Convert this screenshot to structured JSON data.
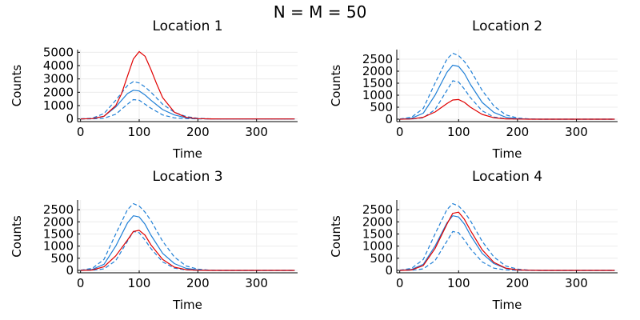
{
  "figure": {
    "suptitle": "N = M = 50"
  },
  "colors": {
    "estimate": "#1f7fd6",
    "truth": "#e00000",
    "grid": "#ececec",
    "axis": "#000000"
  },
  "chart_data": [
    {
      "type": "line",
      "title": "Location 1",
      "xlabel": "Time",
      "ylabel": "Counts",
      "xlim": [
        -5,
        370
      ],
      "ylim": [
        -200,
        5200
      ],
      "xticks": [
        0,
        100,
        200,
        300
      ],
      "yticks": [
        0,
        1000,
        2000,
        3000,
        4000,
        5000
      ],
      "grid": true,
      "series": [
        {
          "style": "solid",
          "color": "#1f7fd6",
          "x": [
            0,
            20,
            40,
            60,
            80,
            90,
            100,
            110,
            120,
            140,
            160,
            180,
            200,
            220,
            240,
            280,
            320,
            365
          ],
          "values": [
            5,
            30,
            200,
            900,
            1900,
            2150,
            2100,
            1800,
            1400,
            700,
            300,
            90,
            25,
            5,
            0,
            0,
            0,
            0
          ]
        },
        {
          "style": "dashed",
          "color": "#1f7fd6",
          "x": [
            0,
            20,
            40,
            60,
            80,
            90,
            100,
            110,
            120,
            140,
            160,
            180,
            200,
            220,
            240,
            280,
            320,
            365
          ],
          "values": [
            10,
            60,
            400,
            1400,
            2500,
            2800,
            2700,
            2400,
            2000,
            1100,
            500,
            180,
            50,
            10,
            0,
            0,
            0,
            0
          ]
        },
        {
          "style": "dashed",
          "color": "#1f7fd6",
          "x": [
            0,
            20,
            40,
            60,
            80,
            90,
            100,
            110,
            120,
            140,
            160,
            180,
            200,
            220,
            240,
            280,
            320,
            365
          ],
          "values": [
            0,
            5,
            50,
            350,
            1100,
            1450,
            1400,
            1100,
            800,
            300,
            80,
            20,
            5,
            0,
            0,
            0,
            0,
            0
          ]
        },
        {
          "style": "solid",
          "color": "#e00000",
          "x": [
            0,
            20,
            40,
            60,
            70,
            80,
            90,
            100,
            110,
            120,
            130,
            140,
            160,
            180,
            200,
            220,
            240,
            280,
            320,
            365
          ],
          "values": [
            0,
            20,
            200,
            1000,
            1900,
            3200,
            4500,
            5050,
            4700,
            3700,
            2600,
            1600,
            500,
            120,
            25,
            5,
            0,
            0,
            0,
            0
          ]
        }
      ]
    },
    {
      "type": "line",
      "title": "Location 2",
      "xlabel": "Time",
      "ylabel": "Counts",
      "xlim": [
        -5,
        370
      ],
      "ylim": [
        -100,
        2900
      ],
      "xticks": [
        0,
        100,
        200,
        300
      ],
      "yticks": [
        0,
        500,
        1000,
        1500,
        2000,
        2500
      ],
      "grid": true,
      "series": [
        {
          "style": "solid",
          "color": "#1f7fd6",
          "x": [
            0,
            20,
            40,
            60,
            80,
            90,
            100,
            110,
            120,
            140,
            160,
            180,
            200,
            220,
            240,
            280,
            320,
            365
          ],
          "values": [
            5,
            40,
            250,
            1000,
            1950,
            2250,
            2200,
            1900,
            1450,
            700,
            280,
            80,
            20,
            5,
            0,
            0,
            0,
            0
          ]
        },
        {
          "style": "dashed",
          "color": "#1f7fd6",
          "x": [
            0,
            20,
            40,
            60,
            80,
            90,
            100,
            110,
            120,
            140,
            160,
            180,
            200,
            220,
            240,
            280,
            320,
            365
          ],
          "values": [
            10,
            80,
            450,
            1500,
            2500,
            2750,
            2650,
            2400,
            2050,
            1200,
            550,
            180,
            50,
            10,
            0,
            0,
            0,
            0
          ]
        },
        {
          "style": "dashed",
          "color": "#1f7fd6",
          "x": [
            0,
            20,
            40,
            60,
            80,
            90,
            100,
            110,
            120,
            140,
            160,
            180,
            200,
            220,
            240,
            280,
            320,
            365
          ],
          "values": [
            0,
            5,
            60,
            400,
            1200,
            1600,
            1550,
            1250,
            900,
            350,
            90,
            20,
            5,
            0,
            0,
            0,
            0,
            0
          ]
        },
        {
          "style": "solid",
          "color": "#e00000",
          "x": [
            0,
            20,
            40,
            60,
            80,
            90,
            100,
            110,
            120,
            140,
            160,
            180,
            200,
            220,
            240,
            280,
            320,
            365
          ],
          "values": [
            0,
            10,
            80,
            300,
            650,
            800,
            820,
            700,
            500,
            200,
            60,
            15,
            5,
            0,
            0,
            0,
            0,
            0
          ]
        }
      ]
    },
    {
      "type": "line",
      "title": "Location 3",
      "xlabel": "Time",
      "ylabel": "Counts",
      "xlim": [
        -5,
        370
      ],
      "ylim": [
        -100,
        2900
      ],
      "xticks": [
        0,
        100,
        200,
        300
      ],
      "yticks": [
        0,
        500,
        1000,
        1500,
        2000,
        2500
      ],
      "grid": true,
      "series": [
        {
          "style": "solid",
          "color": "#1f7fd6",
          "x": [
            0,
            20,
            40,
            60,
            80,
            90,
            100,
            110,
            120,
            140,
            160,
            180,
            200,
            220,
            240,
            280,
            320,
            365
          ],
          "values": [
            5,
            40,
            250,
            1000,
            1950,
            2250,
            2200,
            1900,
            1450,
            700,
            280,
            80,
            20,
            5,
            0,
            0,
            0,
            0
          ]
        },
        {
          "style": "dashed",
          "color": "#1f7fd6",
          "x": [
            0,
            20,
            40,
            60,
            80,
            90,
            100,
            110,
            120,
            140,
            160,
            180,
            200,
            220,
            240,
            280,
            320,
            365
          ],
          "values": [
            10,
            80,
            450,
            1500,
            2500,
            2750,
            2650,
            2400,
            2050,
            1200,
            550,
            180,
            50,
            10,
            0,
            0,
            0,
            0
          ]
        },
        {
          "style": "dashed",
          "color": "#1f7fd6",
          "x": [
            0,
            20,
            40,
            60,
            80,
            90,
            100,
            110,
            120,
            140,
            160,
            180,
            200,
            220,
            240,
            280,
            320,
            365
          ],
          "values": [
            0,
            5,
            60,
            400,
            1200,
            1600,
            1550,
            1250,
            900,
            350,
            90,
            20,
            5,
            0,
            0,
            0,
            0,
            0
          ]
        },
        {
          "style": "solid",
          "color": "#e00000",
          "x": [
            0,
            20,
            40,
            60,
            80,
            90,
            100,
            110,
            120,
            140,
            160,
            180,
            200,
            220,
            240,
            280,
            320,
            365
          ],
          "values": [
            0,
            15,
            150,
            600,
            1250,
            1600,
            1650,
            1450,
            1050,
            450,
            130,
            30,
            5,
            0,
            0,
            0,
            0,
            0
          ]
        }
      ]
    },
    {
      "type": "line",
      "title": "Location 4",
      "xlabel": "Time",
      "ylabel": "Counts",
      "xlim": [
        -5,
        370
      ],
      "ylim": [
        -100,
        2900
      ],
      "xticks": [
        0,
        100,
        200,
        300
      ],
      "yticks": [
        0,
        500,
        1000,
        1500,
        2000,
        2500
      ],
      "grid": true,
      "series": [
        {
          "style": "solid",
          "color": "#1f7fd6",
          "x": [
            0,
            20,
            40,
            60,
            80,
            90,
            100,
            110,
            120,
            140,
            160,
            180,
            200,
            220,
            240,
            280,
            320,
            365
          ],
          "values": [
            5,
            40,
            250,
            1000,
            1950,
            2250,
            2200,
            1900,
            1450,
            700,
            280,
            80,
            20,
            5,
            0,
            0,
            0,
            0
          ]
        },
        {
          "style": "dashed",
          "color": "#1f7fd6",
          "x": [
            0,
            20,
            40,
            60,
            80,
            90,
            100,
            110,
            120,
            140,
            160,
            180,
            200,
            220,
            240,
            280,
            320,
            365
          ],
          "values": [
            10,
            80,
            450,
            1500,
            2500,
            2750,
            2650,
            2400,
            2050,
            1200,
            550,
            180,
            50,
            10,
            0,
            0,
            0,
            0
          ]
        },
        {
          "style": "dashed",
          "color": "#1f7fd6",
          "x": [
            0,
            20,
            40,
            60,
            80,
            90,
            100,
            110,
            120,
            140,
            160,
            180,
            200,
            220,
            240,
            280,
            320,
            365
          ],
          "values": [
            0,
            5,
            60,
            400,
            1200,
            1600,
            1550,
            1250,
            900,
            350,
            90,
            20,
            5,
            0,
            0,
            0,
            0,
            0
          ]
        },
        {
          "style": "solid",
          "color": "#e00000",
          "x": [
            0,
            20,
            40,
            60,
            80,
            90,
            100,
            110,
            120,
            140,
            160,
            180,
            200,
            220,
            240,
            280,
            320,
            365
          ],
          "values": [
            0,
            20,
            200,
            900,
            1900,
            2350,
            2400,
            2100,
            1650,
            850,
            330,
            90,
            20,
            5,
            0,
            0,
            0,
            0
          ]
        }
      ]
    }
  ]
}
